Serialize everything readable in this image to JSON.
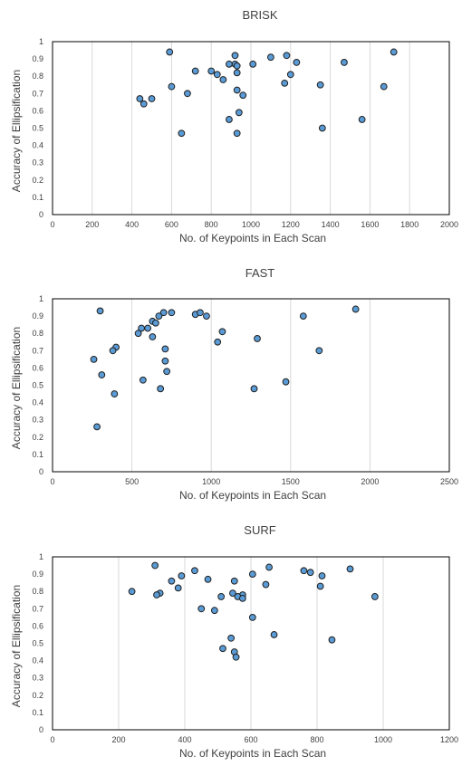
{
  "chart_data": [
    {
      "type": "scatter",
      "title": "BRISK",
      "xlabel": "No. of Keypoints in Each Scan",
      "ylabel": "Accuracy of Ellipsification",
      "xlim": [
        0,
        2000
      ],
      "ylim": [
        0,
        1
      ],
      "xticks": [
        0,
        200,
        400,
        600,
        800,
        1000,
        1200,
        1400,
        1600,
        1800,
        2000
      ],
      "yticks": [
        0,
        0.1,
        0.2,
        0.3,
        0.4,
        0.5,
        0.6,
        0.7,
        0.8,
        0.9,
        1
      ],
      "grid": "vertical",
      "marker_color": "#5b9bd5",
      "points": [
        {
          "x": 590,
          "y": 0.94
        },
        {
          "x": 920,
          "y": 0.92
        },
        {
          "x": 1100,
          "y": 0.91
        },
        {
          "x": 1180,
          "y": 0.92
        },
        {
          "x": 1720,
          "y": 0.94
        },
        {
          "x": 1470,
          "y": 0.88
        },
        {
          "x": 1230,
          "y": 0.88
        },
        {
          "x": 920,
          "y": 0.87
        },
        {
          "x": 930,
          "y": 0.86
        },
        {
          "x": 890,
          "y": 0.87
        },
        {
          "x": 1010,
          "y": 0.87
        },
        {
          "x": 720,
          "y": 0.83
        },
        {
          "x": 800,
          "y": 0.83
        },
        {
          "x": 930,
          "y": 0.82
        },
        {
          "x": 830,
          "y": 0.81
        },
        {
          "x": 1200,
          "y": 0.81
        },
        {
          "x": 860,
          "y": 0.78
        },
        {
          "x": 1170,
          "y": 0.76
        },
        {
          "x": 1350,
          "y": 0.75
        },
        {
          "x": 600,
          "y": 0.74
        },
        {
          "x": 1670,
          "y": 0.74
        },
        {
          "x": 930,
          "y": 0.72
        },
        {
          "x": 680,
          "y": 0.7
        },
        {
          "x": 960,
          "y": 0.69
        },
        {
          "x": 440,
          "y": 0.67
        },
        {
          "x": 500,
          "y": 0.67
        },
        {
          "x": 460,
          "y": 0.64
        },
        {
          "x": 940,
          "y": 0.59
        },
        {
          "x": 890,
          "y": 0.55
        },
        {
          "x": 1560,
          "y": 0.55
        },
        {
          "x": 1360,
          "y": 0.5
        },
        {
          "x": 650,
          "y": 0.47
        },
        {
          "x": 930,
          "y": 0.47
        }
      ]
    },
    {
      "type": "scatter",
      "title": "FAST",
      "xlabel": "No. of Keypoints in Each Scan",
      "ylabel": "Accuracy of Ellipsification",
      "xlim": [
        0,
        2500
      ],
      "ylim": [
        0,
        1
      ],
      "xticks": [
        0,
        500,
        1000,
        1500,
        2000,
        2500
      ],
      "yticks": [
        0,
        0.1,
        0.2,
        0.3,
        0.4,
        0.5,
        0.6,
        0.7,
        0.8,
        0.9,
        1
      ],
      "grid": "vertical",
      "marker_color": "#5b9bd5",
      "points": [
        {
          "x": 300,
          "y": 0.93
        },
        {
          "x": 1910,
          "y": 0.94
        },
        {
          "x": 700,
          "y": 0.92
        },
        {
          "x": 750,
          "y": 0.92
        },
        {
          "x": 900,
          "y": 0.91
        },
        {
          "x": 930,
          "y": 0.92
        },
        {
          "x": 970,
          "y": 0.9
        },
        {
          "x": 670,
          "y": 0.9
        },
        {
          "x": 1580,
          "y": 0.9
        },
        {
          "x": 630,
          "y": 0.87
        },
        {
          "x": 650,
          "y": 0.86
        },
        {
          "x": 560,
          "y": 0.83
        },
        {
          "x": 600,
          "y": 0.83
        },
        {
          "x": 1070,
          "y": 0.81
        },
        {
          "x": 540,
          "y": 0.8
        },
        {
          "x": 630,
          "y": 0.78
        },
        {
          "x": 1290,
          "y": 0.77
        },
        {
          "x": 1040,
          "y": 0.75
        },
        {
          "x": 400,
          "y": 0.72
        },
        {
          "x": 380,
          "y": 0.7
        },
        {
          "x": 710,
          "y": 0.71
        },
        {
          "x": 1680,
          "y": 0.7
        },
        {
          "x": 260,
          "y": 0.65
        },
        {
          "x": 710,
          "y": 0.64
        },
        {
          "x": 720,
          "y": 0.58
        },
        {
          "x": 310,
          "y": 0.56
        },
        {
          "x": 570,
          "y": 0.53
        },
        {
          "x": 1470,
          "y": 0.52
        },
        {
          "x": 680,
          "y": 0.48
        },
        {
          "x": 1270,
          "y": 0.48
        },
        {
          "x": 390,
          "y": 0.45
        },
        {
          "x": 280,
          "y": 0.26
        }
      ]
    },
    {
      "type": "scatter",
      "title": "SURF",
      "xlabel": "No. of Keypoints in Each Scan",
      "ylabel": "Accuracy of Ellipsification",
      "xlim": [
        0,
        1200
      ],
      "ylim": [
        0,
        1
      ],
      "xticks": [
        0,
        200,
        400,
        600,
        800,
        1000,
        1200
      ],
      "yticks": [
        0,
        0.1,
        0.2,
        0.3,
        0.4,
        0.5,
        0.6,
        0.7,
        0.8,
        0.9,
        1
      ],
      "grid": "vertical",
      "marker_color": "#5b9bd5",
      "points": [
        {
          "x": 310,
          "y": 0.95
        },
        {
          "x": 655,
          "y": 0.94
        },
        {
          "x": 430,
          "y": 0.92
        },
        {
          "x": 760,
          "y": 0.92
        },
        {
          "x": 900,
          "y": 0.93
        },
        {
          "x": 780,
          "y": 0.91
        },
        {
          "x": 390,
          "y": 0.89
        },
        {
          "x": 605,
          "y": 0.9
        },
        {
          "x": 815,
          "y": 0.89
        },
        {
          "x": 470,
          "y": 0.87
        },
        {
          "x": 550,
          "y": 0.86
        },
        {
          "x": 360,
          "y": 0.86
        },
        {
          "x": 645,
          "y": 0.84
        },
        {
          "x": 810,
          "y": 0.83
        },
        {
          "x": 380,
          "y": 0.82
        },
        {
          "x": 240,
          "y": 0.8
        },
        {
          "x": 325,
          "y": 0.79
        },
        {
          "x": 315,
          "y": 0.78
        },
        {
          "x": 545,
          "y": 0.79
        },
        {
          "x": 575,
          "y": 0.78
        },
        {
          "x": 510,
          "y": 0.77
        },
        {
          "x": 560,
          "y": 0.77
        },
        {
          "x": 575,
          "y": 0.76
        },
        {
          "x": 975,
          "y": 0.77
        },
        {
          "x": 450,
          "y": 0.7
        },
        {
          "x": 490,
          "y": 0.69
        },
        {
          "x": 605,
          "y": 0.65
        },
        {
          "x": 670,
          "y": 0.55
        },
        {
          "x": 540,
          "y": 0.53
        },
        {
          "x": 845,
          "y": 0.52
        },
        {
          "x": 515,
          "y": 0.47
        },
        {
          "x": 550,
          "y": 0.45
        },
        {
          "x": 555,
          "y": 0.42
        }
      ]
    }
  ]
}
